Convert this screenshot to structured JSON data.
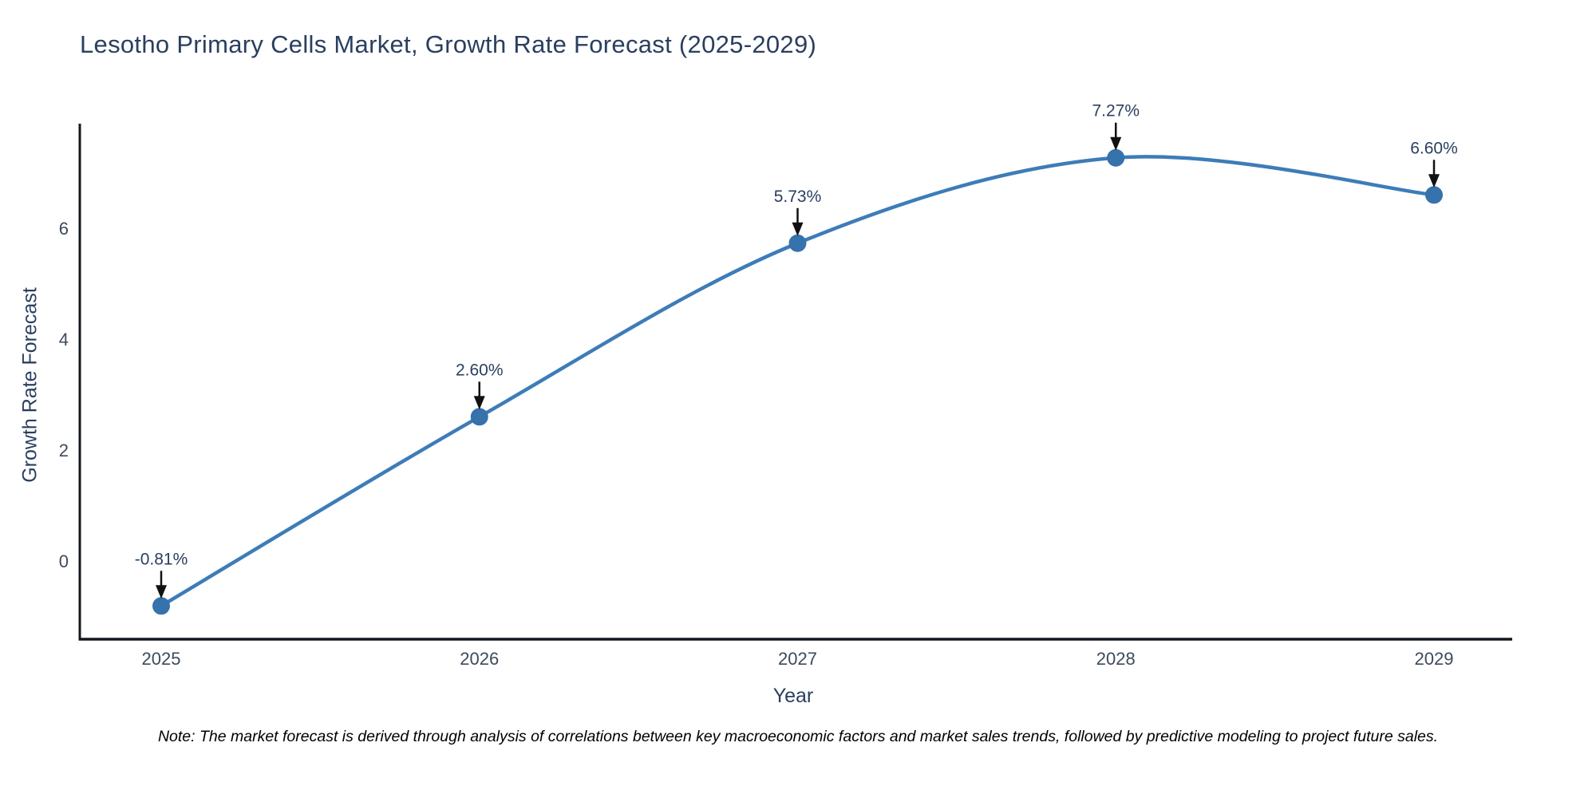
{
  "title": "Lesotho Primary Cells Market, Growth Rate Forecast (2025-2029)",
  "note": "Note: The market forecast is derived through analysis of correlations between key macroeconomic factors and market sales trends, followed by predictive modeling to project future sales.",
  "chart_data": {
    "type": "line",
    "x": [
      "2025",
      "2026",
      "2027",
      "2028",
      "2029"
    ],
    "series": [
      {
        "name": "Growth Rate Forecast",
        "values": [
          -0.81,
          2.6,
          5.73,
          7.27,
          6.6
        ]
      }
    ],
    "point_labels": [
      "-0.81%",
      "2.60%",
      "5.73%",
      "7.27%",
      "6.60%"
    ],
    "title": "Lesotho Primary Cells Market, Growth Rate Forecast (2025-2029)",
    "xlabel": "Year",
    "ylabel": "Growth Rate Forecast",
    "yticks": [
      0,
      2,
      4,
      6
    ],
    "ylim": [
      -1.41,
      7.88
    ],
    "grid": false,
    "legend": "none",
    "smooth": true,
    "line_color": "#3d7cb8",
    "marker_color": "#3672ab",
    "arrow_color": "#111111",
    "axis_color": "#13181f",
    "title_color": "#2a3f5f",
    "background": "#ffffff"
  }
}
